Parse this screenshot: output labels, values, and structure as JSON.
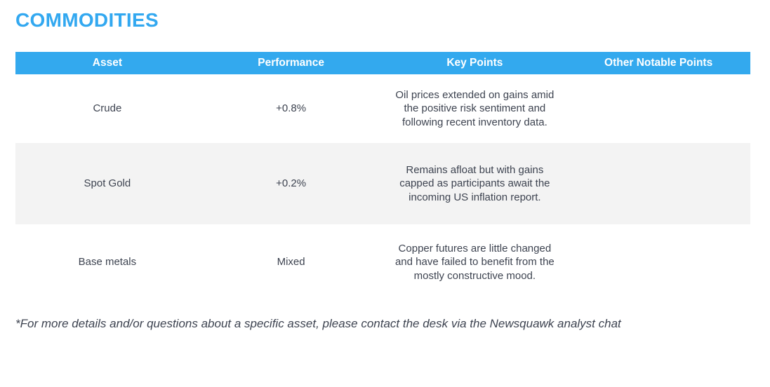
{
  "page": {
    "title": "COMMODITIES"
  },
  "colors": {
    "title_blue": "#32A8F0",
    "header_bar_blue": "#33A9EE",
    "header_text": "#FFFFFF",
    "body_text": "#3D4350",
    "alt_row_bg": "#F3F3F3"
  },
  "table": {
    "columns": [
      "Asset",
      "Performance",
      "Key Points",
      "Other Notable Points"
    ],
    "rows": [
      {
        "asset": "Crude",
        "performance": "+0.8%",
        "key_points": "Oil prices extended on gains amid the positive risk sentiment and following recent inventory data.",
        "other_notable_points": ""
      },
      {
        "asset": "Spot Gold",
        "performance": "+0.2%",
        "key_points": "Remains afloat but with gains capped as participants await the incoming US inflation report.",
        "other_notable_points": ""
      },
      {
        "asset": "Base metals",
        "performance": "Mixed",
        "key_points": "Copper futures are little changed and have failed to benefit from the mostly constructive mood.",
        "other_notable_points": ""
      }
    ]
  },
  "footnote": "*For more details and/or questions about a specific asset, please contact the desk via the Newsquawk analyst chat"
}
